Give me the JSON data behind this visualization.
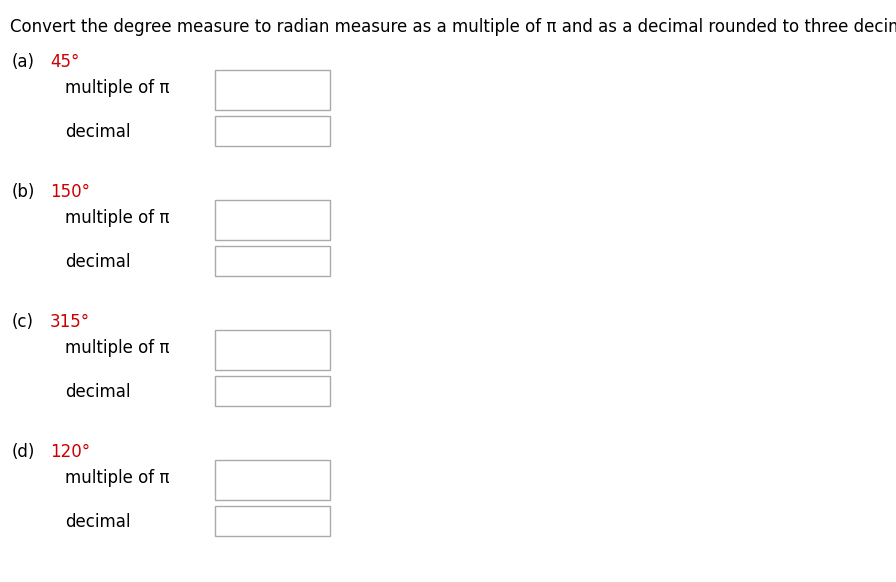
{
  "title": "Convert the degree measure to radian measure as a multiple of π and as a decimal rounded to three decimal places.",
  "title_color": "#000000",
  "title_fontsize": 12,
  "background_color": "#ffffff",
  "parts": [
    {
      "label": "(a)",
      "degree": "45°"
    },
    {
      "label": "(b)",
      "degree": "150°"
    },
    {
      "label": "(c)",
      "degree": "315°"
    },
    {
      "label": "(d)",
      "degree": "120°"
    }
  ],
  "part_label_color": "#000000",
  "degree_color": "#cc0000",
  "row_labels": [
    "multiple of π",
    "decimal"
  ],
  "row_label_color": "#000000",
  "text_fontsize": 12,
  "box_color": "#aaaaaa",
  "box_facecolor": "#ffffff"
}
